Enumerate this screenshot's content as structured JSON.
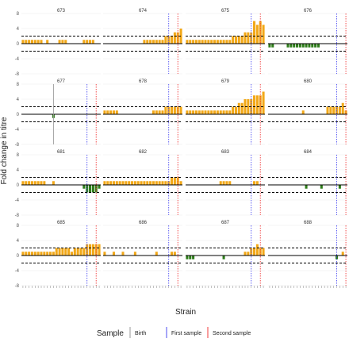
{
  "figure": {
    "ylabel": "Fold change in titre",
    "xlabel": "Strain",
    "legend": {
      "title": "Sample",
      "items": [
        {
          "label": "Birth",
          "color": "#999999"
        },
        {
          "label": "First sample",
          "color": "#4d4df2"
        },
        {
          "label": "Second sample",
          "color": "#f23b3b"
        }
      ]
    },
    "colors": {
      "positive": "#f2a818",
      "negative": "#2e7d1a",
      "panel_bg": "#ffffff",
      "grid": "#ebebeb"
    },
    "y_ticks": [
      8,
      4,
      0,
      -4,
      -8
    ],
    "ylim": [
      -8,
      8
    ],
    "thresholds": [
      2,
      -2
    ]
  },
  "chart_data": [
    {
      "type": "bar",
      "title": "673",
      "birth_index": null,
      "first_sample_index": null,
      "second_sample_index": null,
      "values": [
        1,
        1,
        1,
        1,
        1,
        1,
        1,
        0,
        1,
        0,
        0,
        0,
        1,
        1,
        1,
        0,
        0,
        0,
        0,
        0,
        1,
        1,
        1,
        1,
        0,
        0
      ]
    },
    {
      "type": "bar",
      "title": "674",
      "birth_index": null,
      "first_sample_index": 21,
      "second_sample_index": 24,
      "values": [
        0,
        0,
        0,
        0,
        0,
        0,
        0,
        0,
        0,
        0,
        0,
        0,
        0,
        1,
        1,
        1,
        1,
        1,
        1,
        1,
        2,
        2,
        2,
        3,
        3,
        4
      ]
    },
    {
      "type": "bar",
      "title": "675",
      "birth_index": null,
      "first_sample_index": 21,
      "second_sample_index": 24,
      "values": [
        1,
        1,
        1,
        1,
        1,
        1,
        1,
        1,
        1,
        1,
        1,
        1,
        1,
        1,
        1,
        2,
        2,
        2,
        2,
        3,
        3,
        3,
        6,
        5,
        6,
        5
      ]
    },
    {
      "type": "bar",
      "title": "676",
      "birth_index": null,
      "first_sample_index": 22,
      "second_sample_index": 25,
      "values": [
        -1,
        -1,
        0,
        0,
        0,
        0,
        -1,
        -1,
        -1,
        -1,
        -1,
        -1,
        -1,
        -1,
        -1,
        -1,
        -1,
        0,
        0,
        0,
        0,
        0,
        0,
        0,
        0,
        0
      ]
    },
    {
      "type": "bar",
      "title": "677",
      "birth_index": 10,
      "first_sample_index": 21,
      "second_sample_index": 24,
      "values": [
        0,
        0,
        0,
        0,
        0,
        0,
        0,
        0,
        0,
        0,
        -1,
        0,
        0,
        0,
        0,
        0,
        0,
        0,
        0,
        0,
        0,
        0,
        0,
        0,
        0,
        0
      ]
    },
    {
      "type": "bar",
      "title": "678",
      "birth_index": null,
      "first_sample_index": 21,
      "second_sample_index": 24,
      "values": [
        1,
        1,
        1,
        1,
        1,
        0,
        0,
        0,
        0,
        0,
        0,
        0,
        0,
        0,
        0,
        0,
        1,
        1,
        1,
        1,
        2,
        2,
        2,
        2,
        2,
        2
      ]
    },
    {
      "type": "bar",
      "title": "679",
      "birth_index": null,
      "first_sample_index": 21,
      "second_sample_index": 24,
      "values": [
        1,
        1,
        1,
        1,
        1,
        1,
        1,
        1,
        1,
        1,
        1,
        1,
        1,
        1,
        1,
        2,
        2,
        3,
        3,
        4,
        4,
        4,
        5,
        5,
        5,
        6
      ]
    },
    {
      "type": "bar",
      "title": "680",
      "birth_index": null,
      "first_sample_index": 22,
      "second_sample_index": 25,
      "values": [
        0,
        0,
        0,
        0,
        0,
        0,
        0,
        0,
        0,
        0,
        0,
        1,
        0,
        0,
        0,
        0,
        0,
        0,
        0,
        2,
        2,
        2,
        2,
        2,
        3,
        1
      ]
    },
    {
      "type": "bar",
      "title": "681",
      "birth_index": null,
      "first_sample_index": 21,
      "second_sample_index": 24,
      "values": [
        1,
        1,
        1,
        1,
        1,
        1,
        1,
        1,
        0,
        0,
        1,
        0,
        0,
        0,
        0,
        0,
        0,
        0,
        0,
        0,
        -1,
        -2,
        -2,
        -2,
        -2,
        -1
      ]
    },
    {
      "type": "bar",
      "title": "682",
      "birth_index": null,
      "first_sample_index": 21,
      "second_sample_index": 24,
      "values": [
        1,
        1,
        1,
        1,
        1,
        1,
        1,
        1,
        1,
        1,
        1,
        1,
        1,
        1,
        1,
        1,
        1,
        1,
        1,
        1,
        1,
        1,
        2,
        2,
        2,
        1
      ]
    },
    {
      "type": "bar",
      "title": "683",
      "birth_index": null,
      "first_sample_index": 21,
      "second_sample_index": 24,
      "values": [
        0,
        0,
        0,
        0,
        0,
        0,
        0,
        0,
        0,
        0,
        0,
        1,
        1,
        1,
        1,
        0,
        0,
        0,
        0,
        0,
        0,
        0,
        1,
        1,
        0,
        0
      ]
    },
    {
      "type": "bar",
      "title": "684",
      "birth_index": null,
      "first_sample_index": 22,
      "second_sample_index": 25,
      "values": [
        0,
        0,
        0,
        0,
        0,
        0,
        0,
        0,
        0,
        0,
        0,
        0,
        -1,
        0,
        0,
        0,
        0,
        -1,
        0,
        0,
        0,
        0,
        0,
        -1,
        0,
        0
      ]
    },
    {
      "type": "bar",
      "title": "685",
      "birth_index": null,
      "first_sample_index": 21,
      "second_sample_index": 24,
      "values": [
        1,
        1,
        1,
        1,
        1,
        1,
        1,
        1,
        1,
        1,
        1,
        2,
        2,
        2,
        2,
        2,
        1,
        2,
        2,
        2,
        2,
        3,
        3,
        3,
        3,
        3
      ]
    },
    {
      "type": "bar",
      "title": "686",
      "birth_index": null,
      "first_sample_index": 21,
      "second_sample_index": 24,
      "values": [
        1,
        0,
        0,
        1,
        0,
        0,
        1,
        0,
        0,
        0,
        1,
        0,
        0,
        0,
        0,
        0,
        0,
        1,
        0,
        0,
        0,
        0,
        1,
        1,
        0,
        0
      ]
    },
    {
      "type": "bar",
      "title": "687",
      "birth_index": null,
      "first_sample_index": 21,
      "second_sample_index": 24,
      "values": [
        -1,
        -1,
        -1,
        0,
        0,
        0,
        0,
        0,
        0,
        0,
        0,
        0,
        -1,
        0,
        0,
        0,
        0,
        0,
        0,
        1,
        1,
        2,
        2,
        3,
        2,
        2
      ]
    },
    {
      "type": "bar",
      "title": "688",
      "birth_index": null,
      "first_sample_index": 22,
      "second_sample_index": 25,
      "values": [
        0,
        0,
        0,
        0,
        0,
        0,
        0,
        0,
        0,
        0,
        0,
        0,
        0,
        0,
        0,
        0,
        0,
        0,
        0,
        0,
        0,
        0,
        -1,
        0,
        1,
        0
      ]
    }
  ]
}
